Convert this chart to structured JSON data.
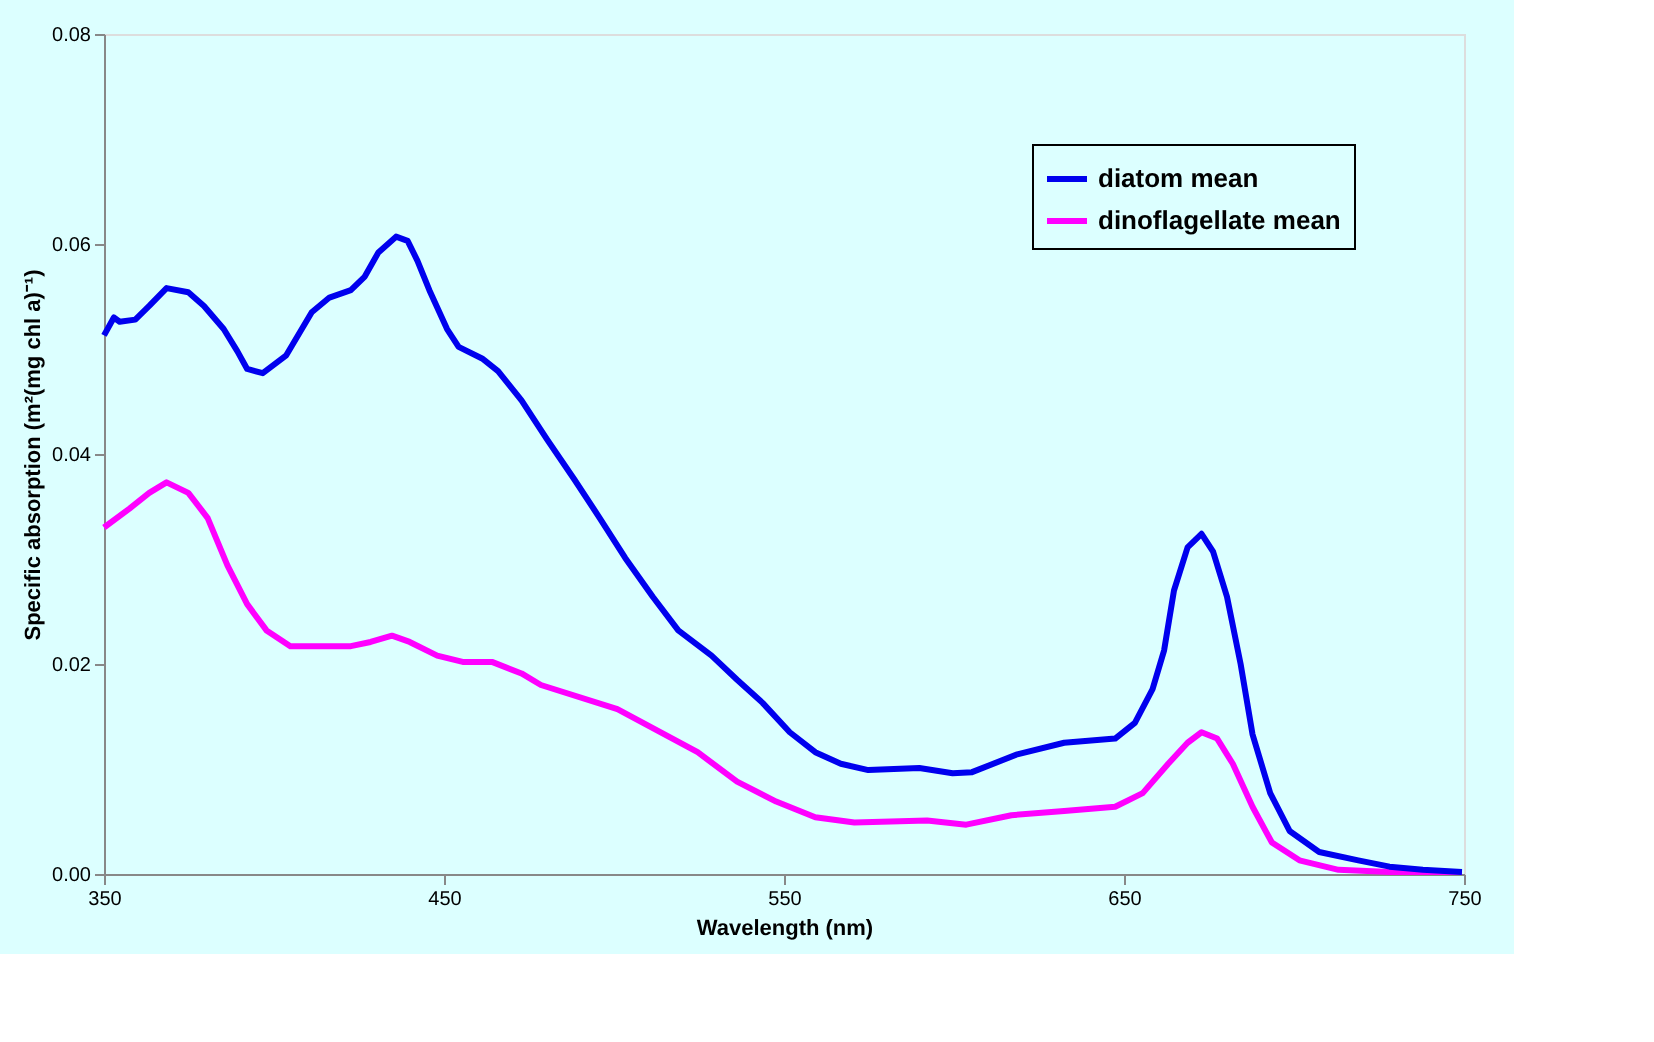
{
  "chart_data": {
    "type": "line",
    "xlabel": "Wavelength (nm)",
    "ylabel": "Specific absorption (m²(mg chl a)⁻¹)",
    "xlim": [
      350,
      750
    ],
    "xticks": [
      350,
      450,
      550,
      650,
      750
    ],
    "ylim": [
      0,
      0.08
    ],
    "yticks": [
      {
        "value": 0,
        "label": "0.00"
      },
      {
        "value": 0.02,
        "label": "0.02"
      },
      {
        "value": 0.04,
        "label": "0.04"
      },
      {
        "value": 0.06,
        "label": "0.06"
      },
      {
        "value": 0.08,
        "label": "0.08"
      }
    ],
    "grid": false,
    "legend": "top right",
    "marker": "none",
    "line_style": "solid",
    "series": [
      {
        "name": "diatom mean",
        "color": "#0000ee",
        "x": [
          350,
          352.9,
          354.6,
          359.2,
          363.3,
          368.4,
          374.8,
          379.4,
          385.2,
          389.2,
          392.1,
          396.7,
          403.6,
          411.1,
          416.3,
          422.6,
          426.7,
          430.7,
          435.9,
          439.3,
          442.2,
          445.7,
          450.9,
          454.3,
          461.2,
          465.9,
          472.8,
          480.3,
          488.3,
          495.8,
          503.3,
          511.4,
          518.9,
          528.7,
          536.2,
          543.7,
          551.7,
          559.2,
          566.7,
          574.8,
          589.8,
          599.6,
          605.3,
          618.6,
          632.4,
          647.4,
          653.2,
          658.4,
          661.8,
          664.7,
          668.7,
          672.8,
          676.2,
          680.3,
          684.3,
          687.8,
          693,
          698.7,
          707.4,
          718.9,
          728.1,
          737.9,
          749.4
        ],
        "values": [
          0.0513,
          0.053,
          0.0526,
          0.0528,
          0.0541,
          0.0558,
          0.0554,
          0.0541,
          0.0519,
          0.0498,
          0.0481,
          0.0477,
          0.0494,
          0.0535,
          0.0549,
          0.0556,
          0.0569,
          0.0592,
          0.0607,
          0.0603,
          0.0584,
          0.0556,
          0.0519,
          0.0502,
          0.0491,
          0.0479,
          0.0451,
          0.0414,
          0.0376,
          0.0339,
          0.0301,
          0.0264,
          0.0232,
          0.0208,
          0.0185,
          0.0163,
          0.0135,
          0.0116,
          0.0105,
          0.0099,
          0.0101,
          0.0096,
          0.0097,
          0.0114,
          0.0125,
          0.0129,
          0.0144,
          0.0176,
          0.0213,
          0.027,
          0.0311,
          0.0324,
          0.0307,
          0.0264,
          0.02,
          0.0133,
          0.0077,
          0.0041,
          0.0021,
          0.0013,
          0.0007,
          0.0004,
          0.0002
        ]
      },
      {
        "name": "dinoflagellate mean",
        "color": "#ff00ff",
        "x": [
          350,
          357.5,
          363.3,
          368.4,
          374.8,
          380.5,
          386.3,
          392.1,
          397.8,
          404.8,
          422.6,
          428.4,
          434.7,
          439.9,
          448,
          455.5,
          464.1,
          472.8,
          478.5,
          501,
          524.6,
          536.2,
          547.7,
          559.2,
          570.7,
          592.1,
          603.6,
          616.9,
          632.4,
          647.4,
          655.5,
          663,
          668.7,
          672.8,
          677.4,
          682,
          687.8,
          693.5,
          701.6,
          713.1,
          728.1,
          749.4
        ],
        "values": [
          0.033,
          0.0348,
          0.0363,
          0.0373,
          0.0363,
          0.0339,
          0.0294,
          0.0257,
          0.0232,
          0.0217,
          0.0217,
          0.0221,
          0.0227,
          0.0221,
          0.0208,
          0.0202,
          0.0202,
          0.0191,
          0.018,
          0.0157,
          0.0116,
          0.0088,
          0.0069,
          0.0054,
          0.0049,
          0.0051,
          0.0047,
          0.0056,
          0.006,
          0.0064,
          0.0077,
          0.0105,
          0.0125,
          0.0135,
          0.0129,
          0.0105,
          0.0064,
          0.003,
          0.0013,
          0.0004,
          0.0002,
          0.0002
        ]
      }
    ]
  }
}
